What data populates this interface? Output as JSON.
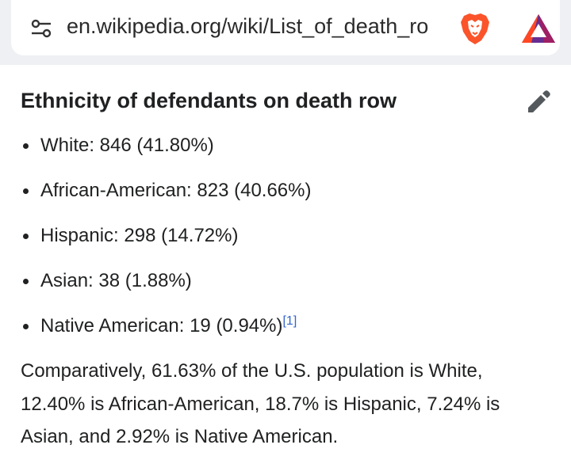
{
  "browser": {
    "url": "en.wikipedia.org/wiki/List_of_death_ro",
    "icons": [
      "tune-icon",
      "brave-lion-icon",
      "bat-rewards-icon"
    ]
  },
  "section": {
    "heading": "Ethnicity of defendants on death row",
    "edit_icon": "pencil-icon",
    "items": [
      {
        "label": "White: 846 (41.80%)"
      },
      {
        "label": "African-American: 823 (40.66%)"
      },
      {
        "label": "Hispanic: 298 (14.72%)"
      },
      {
        "label": "Asian: 38 (1.88%)"
      },
      {
        "label": "Native American: 19 (0.94%)",
        "ref": "[1]"
      }
    ],
    "paragraph": "Comparatively, 61.63% of the U.S. population is White, 12.40% is African-American, 18.7% is Hispanic, 7.24% is Asian, and 2.92% is Native American."
  },
  "colors": {
    "text": "#202122",
    "link": "#3366cc",
    "toolbar_bg": "#eef0f4",
    "brave_orange": "#fb542b"
  }
}
